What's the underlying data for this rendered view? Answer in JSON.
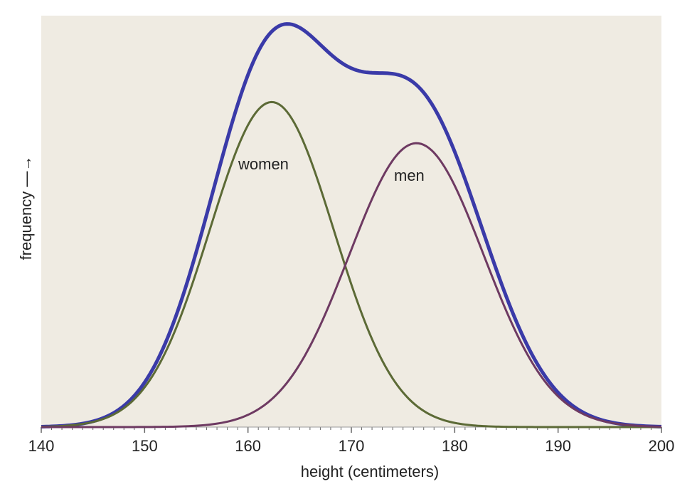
{
  "chart_data": {
    "type": "line",
    "xlabel": "height (centimeters)",
    "ylabel": "frequency —→",
    "xlim": [
      140,
      200
    ],
    "ylim": [
      0,
      1
    ],
    "x_ticks": [
      140,
      150,
      160,
      170,
      180,
      190,
      200
    ],
    "grid": false,
    "colors": {
      "background": "#efebe2",
      "total": "#3a3aa8",
      "women": "#5c6a36",
      "men": "#6e3a62"
    },
    "series": [
      {
        "name": "women",
        "mean": 162.3,
        "sd": 6.0,
        "peak": 0.79
      },
      {
        "name": "men",
        "mean": 176.3,
        "sd": 6.5,
        "peak": 0.69
      }
    ],
    "total_curve_peak": 0.98,
    "annotations": [
      "women",
      "men"
    ]
  }
}
